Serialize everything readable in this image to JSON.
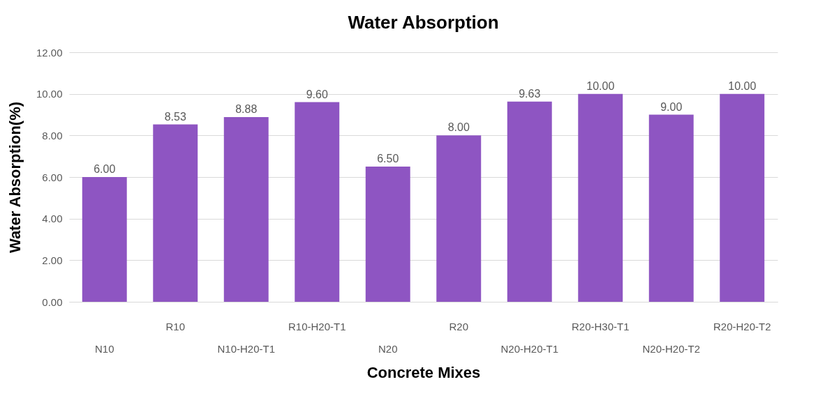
{
  "chart_data": {
    "type": "bar",
    "title": "Water Absorption",
    "xlabel": "Concrete Mixes",
    "ylabel": "Water Absorption(%)",
    "categories": [
      "N10",
      "R10",
      "N10-H20-T1",
      "R10-H20-T1",
      "N20",
      "R20",
      "N20-H20-T1",
      "R20-H30-T1",
      "N20-H20-T2",
      "R20-H20-T2"
    ],
    "values": [
      6.0,
      8.53,
      8.88,
      9.6,
      6.5,
      8.0,
      9.63,
      10.0,
      9.0,
      10.0
    ],
    "value_labels": [
      "6.00",
      "8.53",
      "8.88",
      "9.60",
      "6.50",
      "8.00",
      "9.63",
      "10.00",
      "9.00",
      "10.00"
    ],
    "color": "#8e55c2",
    "ylim": [
      0,
      12
    ],
    "yticks": [
      {
        "value": 0,
        "label": "0.00"
      },
      {
        "value": 2,
        "label": "2.00"
      },
      {
        "value": 4,
        "label": "4.00"
      },
      {
        "value": 6,
        "label": "6.00"
      },
      {
        "value": 8,
        "label": "8.00"
      },
      {
        "value": 10,
        "label": "10.00"
      },
      {
        "value": 12,
        "label": "12.00"
      }
    ],
    "grid": "y"
  }
}
